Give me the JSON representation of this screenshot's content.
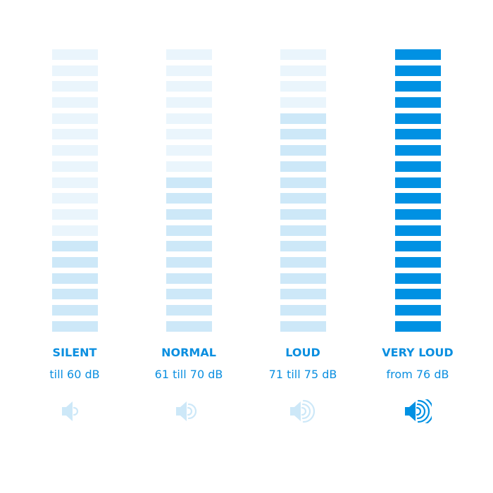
{
  "colors": {
    "accent": "#0091e3",
    "active_light": "#cde8f8",
    "inactive": "#eaf5fc"
  },
  "total_segments": 18,
  "levels": [
    {
      "title": "SILENT",
      "range": "till 60 dB",
      "lit_segments": 6,
      "style": "light",
      "icon": "speaker-1-wave-icon",
      "waves": 1
    },
    {
      "title": "NORMAL",
      "range": "61 till 70 dB",
      "lit_segments": 10,
      "style": "light",
      "icon": "speaker-2-waves-icon",
      "waves": 2
    },
    {
      "title": "LOUD",
      "range": "71 till 75 dB",
      "lit_segments": 14,
      "style": "light",
      "icon": "speaker-3-waves-icon",
      "waves": 3
    },
    {
      "title": "VERY LOUD",
      "range": "from 76 dB",
      "lit_segments": 18,
      "style": "strong",
      "icon": "speaker-4-waves-icon",
      "waves": 4
    }
  ]
}
